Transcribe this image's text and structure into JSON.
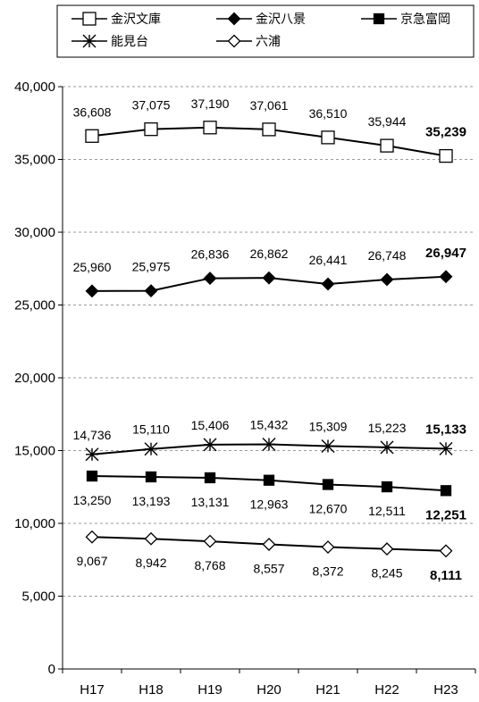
{
  "chart_data": {
    "type": "line",
    "categories": [
      "H17",
      "H18",
      "H19",
      "H20",
      "H21",
      "H22",
      "H23"
    ],
    "ylim": [
      0,
      40000
    ],
    "yticks": [
      "0",
      "5,000",
      "10,000",
      "15,000",
      "20,000",
      "25,000",
      "30,000",
      "35,000",
      "40,000"
    ],
    "ytick_values": [
      0,
      5000,
      10000,
      15000,
      20000,
      25000,
      30000,
      35000,
      40000
    ],
    "grid": "horizontal-dashed",
    "legend": "top",
    "series": [
      {
        "name": "金沢文庫",
        "marker": "square-open",
        "values": [
          36608,
          37075,
          37190,
          37061,
          36510,
          35944,
          35239
        ],
        "labels": [
          "36,608",
          "37,075",
          "37,190",
          "37,061",
          "36,510",
          "35,944",
          "35,239"
        ]
      },
      {
        "name": "金沢八景",
        "marker": "diamond-filled",
        "values": [
          25960,
          25975,
          26836,
          26862,
          26441,
          26748,
          26947
        ],
        "labels": [
          "25,960",
          "25,975",
          "26,836",
          "26,862",
          "26,441",
          "26,748",
          "26,947"
        ]
      },
      {
        "name": "京急富岡",
        "marker": "square-filled",
        "values": [
          13250,
          13193,
          13131,
          12963,
          12670,
          12511,
          12251
        ],
        "labels": [
          "13,250",
          "13,193",
          "13,131",
          "12,963",
          "12,670",
          "12,511",
          "12,251"
        ]
      },
      {
        "name": "能見台",
        "marker": "asterisk",
        "values": [
          14736,
          15110,
          15406,
          15432,
          15309,
          15223,
          15133
        ],
        "labels": [
          "14,736",
          "15,110",
          "15,406",
          "15,432",
          "15,309",
          "15,223",
          "15,133"
        ]
      },
      {
        "name": "六浦",
        "marker": "diamond-open",
        "values": [
          9067,
          8942,
          8768,
          8557,
          8372,
          8245,
          8111
        ],
        "labels": [
          "9,067",
          "8,942",
          "8,768",
          "8,557",
          "8,372",
          "8,245",
          "8,111"
        ]
      }
    ]
  }
}
